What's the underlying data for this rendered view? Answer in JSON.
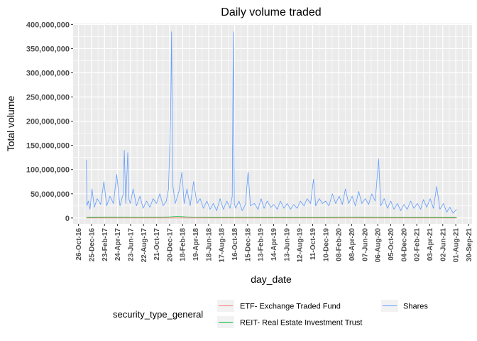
{
  "chart_data": {
    "type": "line",
    "title": "Daily volume traded",
    "xlabel": "day_date",
    "ylabel": "Total volume",
    "xlim": [
      "2016-10-01",
      "2021-10-15"
    ],
    "ylim": [
      -12000000,
      402000000
    ],
    "yticks": [
      {
        "value": 0,
        "label": "0"
      },
      {
        "value": 50000000,
        "label": "50,000,000"
      },
      {
        "value": 100000000,
        "label": "100,000,000"
      },
      {
        "value": 150000000,
        "label": "150,000,000"
      },
      {
        "value": 200000000,
        "label": "200,000,000"
      },
      {
        "value": 250000000,
        "label": "250,000,000"
      },
      {
        "value": 300000000,
        "label": "300,000,000"
      },
      {
        "value": 350000000,
        "label": "350,000,000"
      },
      {
        "value": 400000000,
        "label": "400,000,000"
      }
    ],
    "xticks": [
      {
        "value": "2016-10-26",
        "label": "26-Oct-16"
      },
      {
        "value": "2016-12-25",
        "label": "25-Dec-16"
      },
      {
        "value": "2017-02-23",
        "label": "23-Feb-17"
      },
      {
        "value": "2017-04-24",
        "label": "24-Apr-17"
      },
      {
        "value": "2017-06-23",
        "label": "23-Jun-17"
      },
      {
        "value": "2017-08-22",
        "label": "22-Aug-17"
      },
      {
        "value": "2017-10-21",
        "label": "21-Oct-17"
      },
      {
        "value": "2017-12-20",
        "label": "20-Dec-17"
      },
      {
        "value": "2018-02-18",
        "label": "18-Feb-18"
      },
      {
        "value": "2018-04-19",
        "label": "19-Apr-18"
      },
      {
        "value": "2018-06-18",
        "label": "18-Jun-18"
      },
      {
        "value": "2018-08-17",
        "label": "17-Aug-18"
      },
      {
        "value": "2018-10-16",
        "label": "16-Oct-18"
      },
      {
        "value": "2018-12-15",
        "label": "15-Dec-18"
      },
      {
        "value": "2019-02-13",
        "label": "13-Feb-19"
      },
      {
        "value": "2019-04-14",
        "label": "14-Apr-19"
      },
      {
        "value": "2019-06-13",
        "label": "13-Jun-19"
      },
      {
        "value": "2019-08-12",
        "label": "12-Aug-19"
      },
      {
        "value": "2019-10-11",
        "label": "11-Oct-19"
      },
      {
        "value": "2019-12-10",
        "label": "10-Dec-19"
      },
      {
        "value": "2020-02-08",
        "label": "08-Feb-20"
      },
      {
        "value": "2020-04-08",
        "label": "08-Apr-20"
      },
      {
        "value": "2020-06-07",
        "label": "07-Jun-20"
      },
      {
        "value": "2020-08-06",
        "label": "06-Aug-20"
      },
      {
        "value": "2020-10-05",
        "label": "05-Oct-20"
      },
      {
        "value": "2020-12-04",
        "label": "04-Dec-20"
      },
      {
        "value": "2021-02-02",
        "label": "02-Feb-21"
      },
      {
        "value": "2021-04-03",
        "label": "03-Apr-21"
      },
      {
        "value": "2021-06-02",
        "label": "02-Jun-21"
      },
      {
        "value": "2021-08-01",
        "label": "01-Aug-21"
      },
      {
        "value": "2021-09-30",
        "label": "30-Sep-21"
      }
    ],
    "grid": true,
    "legend": {
      "title": "security_type_general",
      "position": "bottom"
    },
    "series": [
      {
        "name": "ETF- Exchange Traded Fund",
        "color": "#F8766D",
        "x": [
          "2016-12-01",
          "2017-06-01",
          "2018-01-01",
          "2018-07-01",
          "2019-01-01",
          "2019-07-01",
          "2020-01-01",
          "2020-07-01",
          "2021-01-01",
          "2021-07-01",
          "2021-08-05"
        ],
        "y": [
          0,
          0,
          0,
          0,
          0,
          0,
          0,
          0,
          0,
          0,
          0
        ]
      },
      {
        "name": "REIT- Real Estate Investment Trust",
        "color": "#00BA38",
        "x": [
          "2016-12-01",
          "2017-04-01",
          "2017-08-01",
          "2017-12-01",
          "2018-01-25",
          "2018-04-01",
          "2018-08-01",
          "2018-12-01",
          "2019-04-01",
          "2019-08-01",
          "2019-12-01",
          "2020-04-01",
          "2020-08-01",
          "2020-12-01",
          "2021-04-01",
          "2021-08-05"
        ],
        "y": [
          1000000,
          1500000,
          1200000,
          1500000,
          3500000,
          1300000,
          1000000,
          1200000,
          1000000,
          1100000,
          1000000,
          1400000,
          1200000,
          1100000,
          1000000,
          900000
        ]
      },
      {
        "name": "Shares",
        "color": "#619CFF",
        "x": [
          "2016-12-01",
          "2016-12-04",
          "2016-12-10",
          "2016-12-18",
          "2016-12-27",
          "2017-01-07",
          "2017-01-20",
          "2017-02-05",
          "2017-02-20",
          "2017-03-05",
          "2017-03-20",
          "2017-04-05",
          "2017-04-20",
          "2017-05-05",
          "2017-05-20",
          "2017-05-25",
          "2017-06-01",
          "2017-06-10",
          "2017-06-15",
          "2017-06-22",
          "2017-07-05",
          "2017-07-20",
          "2017-08-05",
          "2017-08-20",
          "2017-09-05",
          "2017-09-20",
          "2017-10-05",
          "2017-10-20",
          "2017-11-05",
          "2017-11-20",
          "2017-12-05",
          "2017-12-15",
          "2017-12-25",
          "2017-12-29",
          "2018-01-03",
          "2018-01-15",
          "2018-02-01",
          "2018-02-15",
          "2018-02-25",
          "2018-03-10",
          "2018-03-25",
          "2018-04-10",
          "2018-04-25",
          "2018-05-10",
          "2018-05-25",
          "2018-06-10",
          "2018-06-25",
          "2018-07-10",
          "2018-07-25",
          "2018-08-10",
          "2018-08-25",
          "2018-09-10",
          "2018-09-25",
          "2018-10-05",
          "2018-10-10",
          "2018-10-15",
          "2018-10-20",
          "2018-11-05",
          "2018-11-20",
          "2018-12-05",
          "2018-12-17",
          "2018-12-28",
          "2019-01-15",
          "2019-02-01",
          "2019-02-15",
          "2019-03-01",
          "2019-03-15",
          "2019-04-01",
          "2019-04-15",
          "2019-05-01",
          "2019-05-15",
          "2019-06-01",
          "2019-06-15",
          "2019-07-01",
          "2019-07-15",
          "2019-08-01",
          "2019-08-15",
          "2019-09-01",
          "2019-09-15",
          "2019-10-01",
          "2019-10-15",
          "2019-10-25",
          "2019-11-10",
          "2019-11-25",
          "2019-12-10",
          "2019-12-25",
          "2020-01-10",
          "2020-01-25",
          "2020-02-10",
          "2020-02-25",
          "2020-03-10",
          "2020-03-25",
          "2020-04-10",
          "2020-04-25",
          "2020-05-10",
          "2020-05-25",
          "2020-06-10",
          "2020-06-25",
          "2020-07-10",
          "2020-07-25",
          "2020-08-01",
          "2020-08-10",
          "2020-08-20",
          "2020-09-05",
          "2020-09-20",
          "2020-10-05",
          "2020-10-20",
          "2020-11-05",
          "2020-11-20",
          "2020-12-05",
          "2020-12-20",
          "2021-01-05",
          "2021-01-20",
          "2021-02-05",
          "2021-02-20",
          "2021-03-05",
          "2021-03-20",
          "2021-04-05",
          "2021-04-20",
          "2021-05-05",
          "2021-05-20",
          "2021-06-05",
          "2021-06-20",
          "2021-07-05",
          "2021-07-20",
          "2021-08-05"
        ],
        "y": [
          120000000,
          25000000,
          35000000,
          18000000,
          60000000,
          22000000,
          40000000,
          28000000,
          75000000,
          25000000,
          45000000,
          30000000,
          90000000,
          25000000,
          50000000,
          140000000,
          30000000,
          135000000,
          40000000,
          30000000,
          60000000,
          25000000,
          45000000,
          20000000,
          35000000,
          22000000,
          40000000,
          30000000,
          50000000,
          25000000,
          35000000,
          60000000,
          210000000,
          385000000,
          70000000,
          30000000,
          55000000,
          95000000,
          30000000,
          60000000,
          25000000,
          75000000,
          30000000,
          40000000,
          20000000,
          35000000,
          18000000,
          30000000,
          15000000,
          40000000,
          18000000,
          35000000,
          20000000,
          45000000,
          385000000,
          30000000,
          20000000,
          35000000,
          15000000,
          28000000,
          95000000,
          25000000,
          30000000,
          18000000,
          40000000,
          20000000,
          35000000,
          22000000,
          28000000,
          18000000,
          35000000,
          20000000,
          30000000,
          18000000,
          28000000,
          20000000,
          35000000,
          25000000,
          40000000,
          30000000,
          80000000,
          25000000,
          40000000,
          30000000,
          35000000,
          25000000,
          50000000,
          30000000,
          45000000,
          28000000,
          60000000,
          30000000,
          45000000,
          25000000,
          55000000,
          30000000,
          40000000,
          28000000,
          50000000,
          35000000,
          70000000,
          122000000,
          25000000,
          40000000,
          20000000,
          35000000,
          18000000,
          30000000,
          15000000,
          28000000,
          18000000,
          35000000,
          20000000,
          30000000,
          18000000,
          38000000,
          22000000,
          40000000,
          20000000,
          65000000,
          18000000,
          30000000,
          12000000,
          22000000,
          10000000,
          18000000
        ]
      }
    ]
  }
}
